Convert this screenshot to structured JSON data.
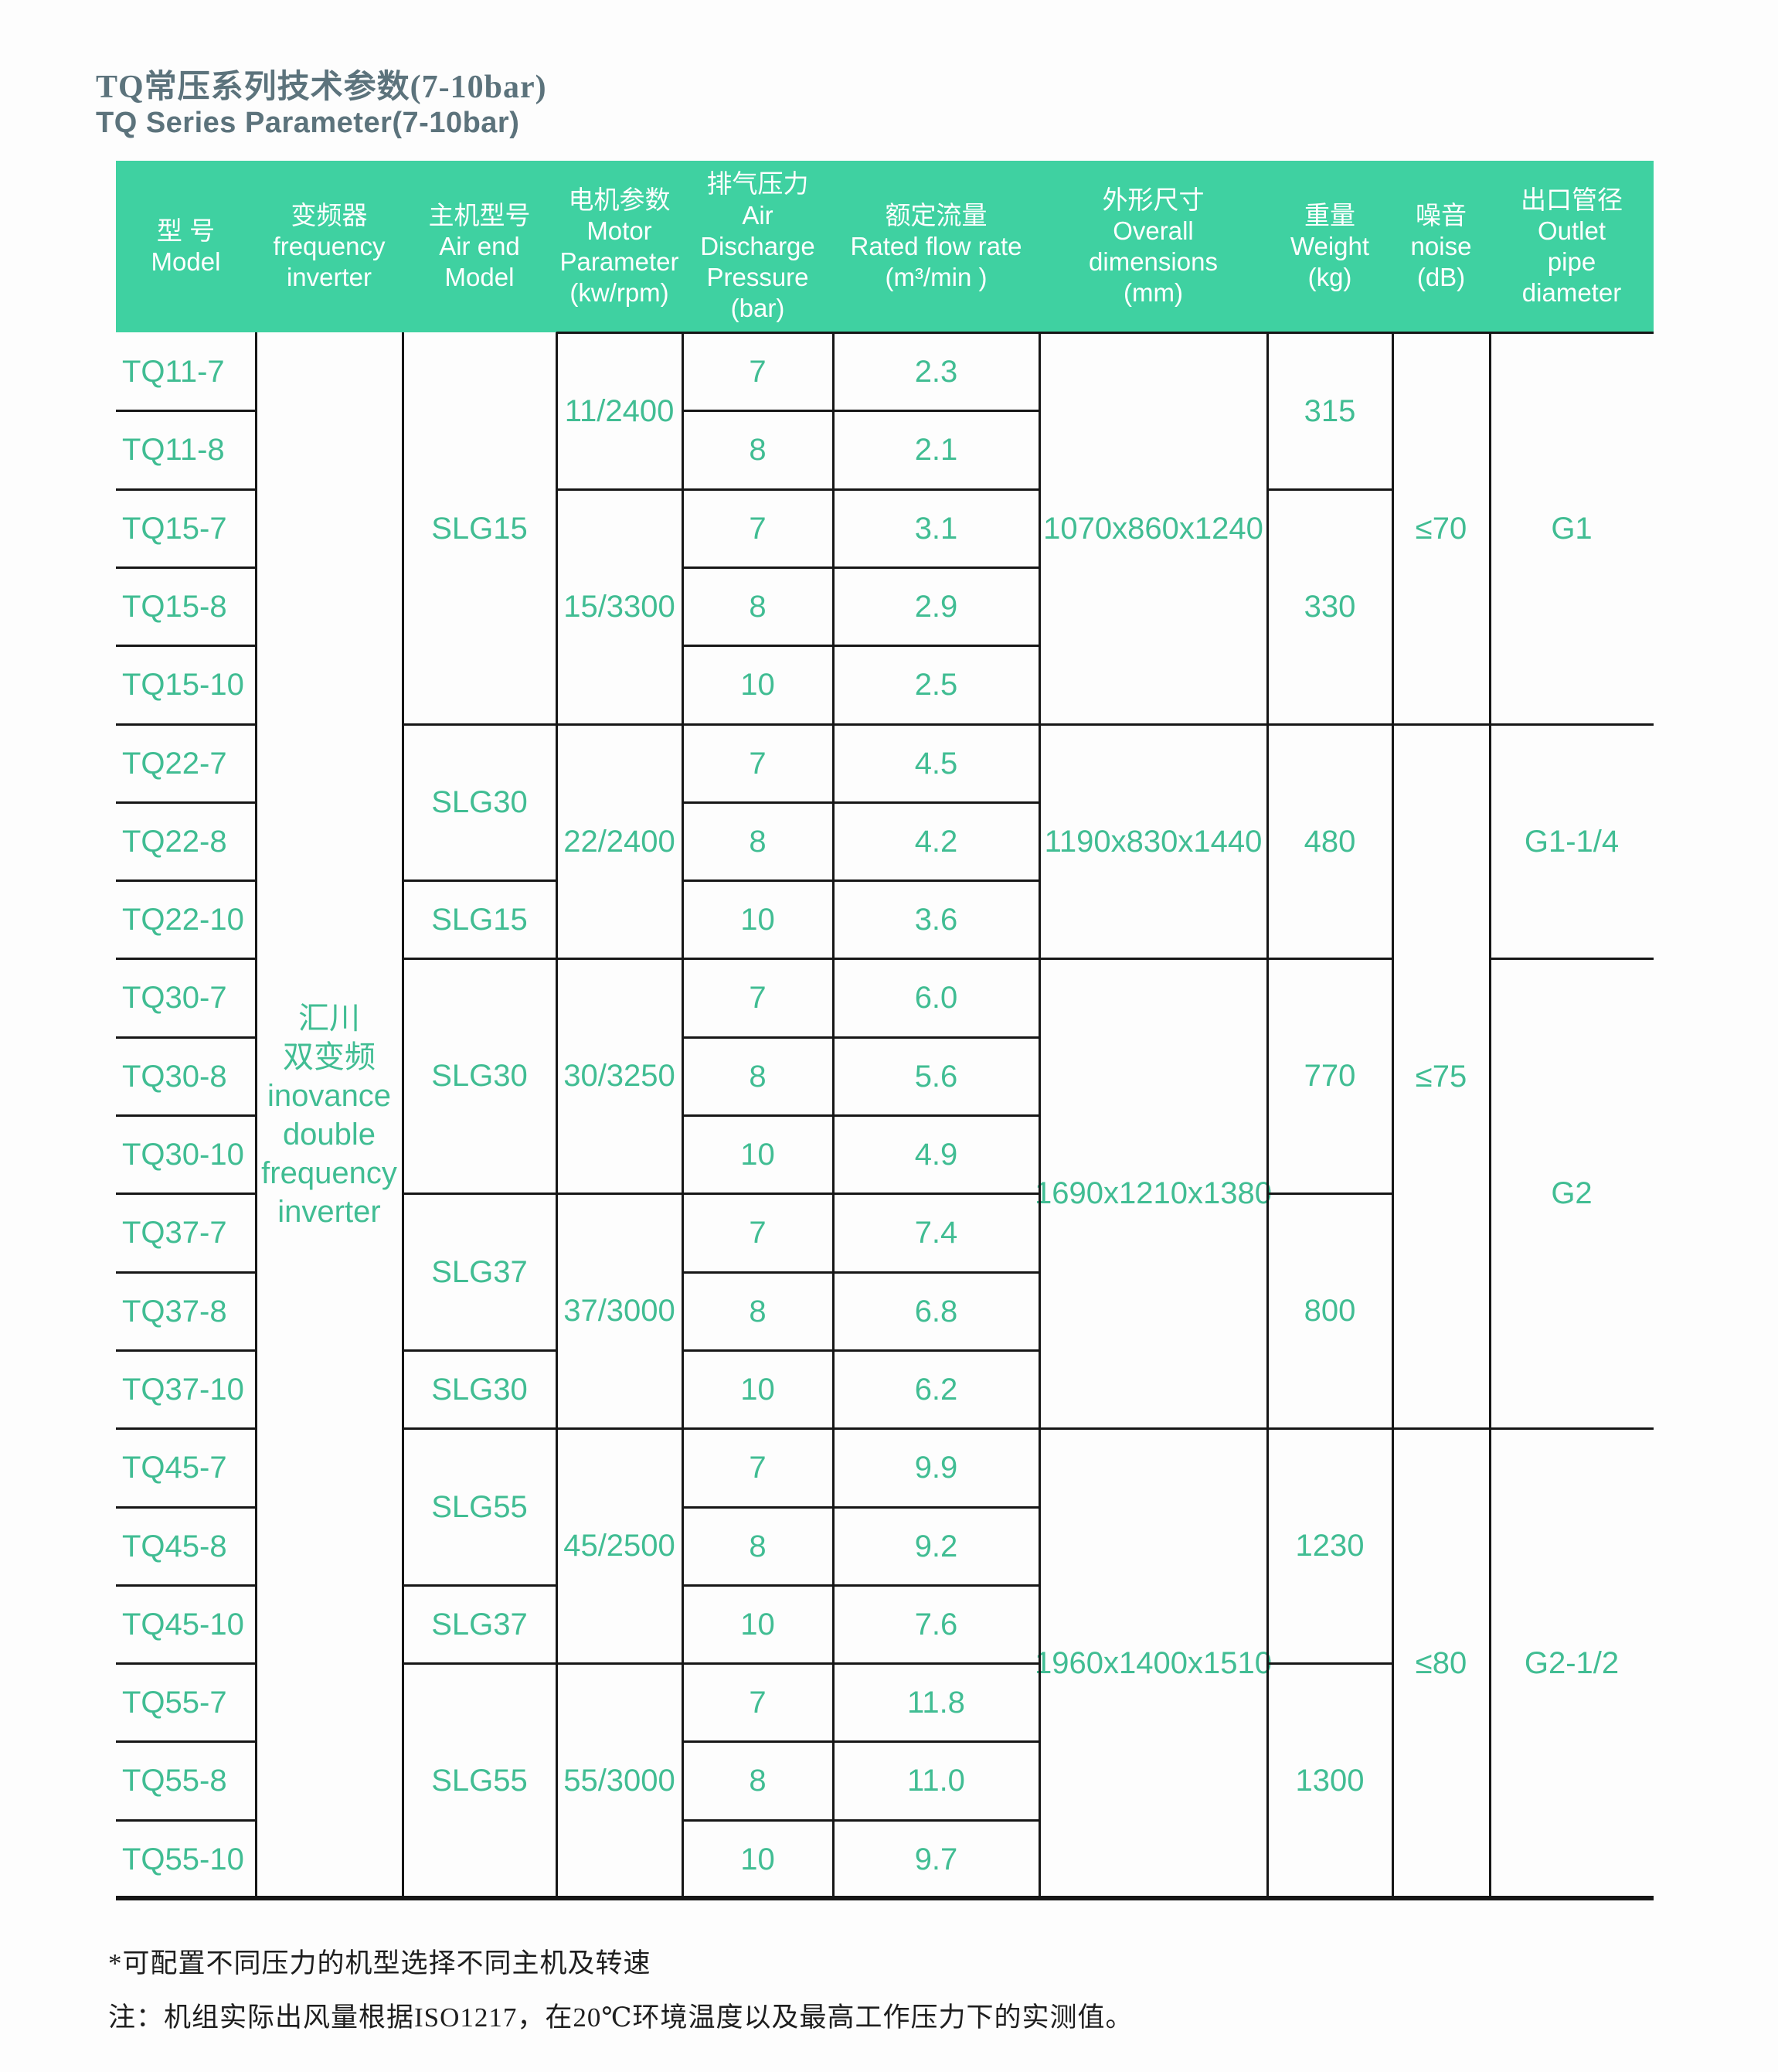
{
  "titles": {
    "zh": "TQ常压系列技术参数(7-10bar)",
    "en": "TQ Series Parameter(7-10bar)"
  },
  "notes": [
    "*可配置不同压力的机型选择不同主机及转速",
    "注：机组实际出风量根据ISO1217，在20℃环境温度以及最高工作压力下的实测值。"
  ],
  "colors": {
    "header_bg": "#3fd1a1",
    "header_text": "#ffffff",
    "data_text": "#41bd93",
    "title_text": "#5c737c",
    "grid_line": "#161616",
    "note_text": "#1e1e1e"
  },
  "table": {
    "columns": [
      {
        "key": "model",
        "header_lines": [
          "型  号",
          "Model"
        ]
      },
      {
        "key": "inverter",
        "header_lines": [
          "变频器",
          "frequency",
          "inverter"
        ]
      },
      {
        "key": "air_end",
        "header_lines": [
          "主机型号",
          "Air end",
          "Model"
        ]
      },
      {
        "key": "motor",
        "header_lines": [
          "电机参数",
          "Motor",
          "Parameter",
          "(kw/rpm)"
        ]
      },
      {
        "key": "pressure",
        "header_lines": [
          "排气压力",
          "Air",
          "Discharge",
          "Pressure",
          "(bar)"
        ]
      },
      {
        "key": "flow",
        "header_lines": [
          "额定流量",
          "Rated flow rate",
          "(m³/min )"
        ]
      },
      {
        "key": "dimensions",
        "header_lines": [
          "外形尺寸",
          "Overall",
          "dimensions",
          "(mm)"
        ]
      },
      {
        "key": "weight",
        "header_lines": [
          "重量",
          "Weight",
          "(kg)"
        ]
      },
      {
        "key": "noise",
        "header_lines": [
          "噪音",
          "noise",
          "(dB)"
        ]
      },
      {
        "key": "outlet",
        "header_lines": [
          "出口管径",
          "Outlet",
          "pipe",
          "diameter"
        ]
      }
    ],
    "rows": [
      {
        "model": "TQ11-7",
        "pressure": "7",
        "flow": "2.3"
      },
      {
        "model": "TQ11-8",
        "pressure": "8",
        "flow": "2.1"
      },
      {
        "model": "TQ15-7",
        "pressure": "7",
        "flow": "3.1"
      },
      {
        "model": "TQ15-8",
        "pressure": "8",
        "flow": "2.9"
      },
      {
        "model": "TQ15-10",
        "pressure": "10",
        "flow": "2.5"
      },
      {
        "model": "TQ22-7",
        "pressure": "7",
        "flow": "4.5"
      },
      {
        "model": "TQ22-8",
        "pressure": "8",
        "flow": "4.2"
      },
      {
        "model": "TQ22-10",
        "pressure": "10",
        "flow": "3.6"
      },
      {
        "model": "TQ30-7",
        "pressure": "7",
        "flow": "6.0"
      },
      {
        "model": "TQ30-8",
        "pressure": "8",
        "flow": "5.6"
      },
      {
        "model": "TQ30-10",
        "pressure": "10",
        "flow": "4.9"
      },
      {
        "model": "TQ37-7",
        "pressure": "7",
        "flow": "7.4"
      },
      {
        "model": "TQ37-8",
        "pressure": "8",
        "flow": "6.8"
      },
      {
        "model": "TQ37-10",
        "pressure": "10",
        "flow": "6.2"
      },
      {
        "model": "TQ45-7",
        "pressure": "7",
        "flow": "9.9"
      },
      {
        "model": "TQ45-8",
        "pressure": "8",
        "flow": "9.2"
      },
      {
        "model": "TQ45-10",
        "pressure": "10",
        "flow": "7.6"
      },
      {
        "model": "TQ55-7",
        "pressure": "7",
        "flow": "11.8"
      },
      {
        "model": "TQ55-8",
        "pressure": "8",
        "flow": "11.0"
      },
      {
        "model": "TQ55-10",
        "pressure": "10",
        "flow": "9.7"
      }
    ],
    "inverter_cell": {
      "lines": [
        "汇川",
        "双变频",
        "inovance",
        "double",
        "frequency",
        "inverter"
      ],
      "span": [
        0,
        20
      ]
    },
    "air_end_cells": [
      {
        "label": "SLG15",
        "span": [
          0,
          5
        ]
      },
      {
        "label": "SLG30",
        "span": [
          5,
          7
        ]
      },
      {
        "label": "SLG15",
        "span": [
          7,
          8
        ]
      },
      {
        "label": "SLG30",
        "span": [
          8,
          11
        ]
      },
      {
        "label": "SLG37",
        "span": [
          11,
          13
        ]
      },
      {
        "label": "SLG30",
        "span": [
          13,
          14
        ]
      },
      {
        "label": "SLG55",
        "span": [
          14,
          16
        ]
      },
      {
        "label": "SLG37",
        "span": [
          16,
          17
        ]
      },
      {
        "label": "SLG55",
        "span": [
          17,
          20
        ]
      }
    ],
    "motor_cells": [
      {
        "label": "11/2400",
        "span": [
          0,
          2
        ]
      },
      {
        "label": "15/3300",
        "span": [
          2,
          5
        ]
      },
      {
        "label": "22/2400",
        "span": [
          5,
          8
        ]
      },
      {
        "label": "30/3250",
        "span": [
          8,
          11
        ]
      },
      {
        "label": "37/3000",
        "span": [
          11,
          14
        ]
      },
      {
        "label": "45/2500",
        "span": [
          14,
          17
        ]
      },
      {
        "label": "55/3000",
        "span": [
          17,
          20
        ]
      }
    ],
    "dimensions_cells": [
      {
        "label": "1070x860x1240",
        "span": [
          0,
          5
        ]
      },
      {
        "label": "1190x830x1440",
        "span": [
          5,
          8
        ]
      },
      {
        "label": "1690x1210x1380",
        "span": [
          8,
          14
        ]
      },
      {
        "label": "1960x1400x1510",
        "span": [
          14,
          20
        ]
      }
    ],
    "weight_cells": [
      {
        "label": "315",
        "span": [
          0,
          2
        ]
      },
      {
        "label": "330",
        "span": [
          2,
          5
        ]
      },
      {
        "label": "480",
        "span": [
          5,
          8
        ]
      },
      {
        "label": "770",
        "span": [
          8,
          11
        ]
      },
      {
        "label": "800",
        "span": [
          11,
          14
        ]
      },
      {
        "label": "1230",
        "span": [
          14,
          17
        ]
      },
      {
        "label": "1300",
        "span": [
          17,
          20
        ]
      }
    ],
    "noise_cells": [
      {
        "label": "≤70",
        "span": [
          0,
          5
        ]
      },
      {
        "label": "≤75",
        "span": [
          5,
          14
        ]
      },
      {
        "label": "≤80",
        "span": [
          14,
          20
        ]
      }
    ],
    "outlet_cells": [
      {
        "label": "G1",
        "span": [
          0,
          5
        ]
      },
      {
        "label": "G1-1/4",
        "span": [
          5,
          8
        ]
      },
      {
        "label": "G2",
        "span": [
          8,
          14
        ]
      },
      {
        "label": "G2-1/2",
        "span": [
          14,
          20
        ]
      }
    ]
  }
}
